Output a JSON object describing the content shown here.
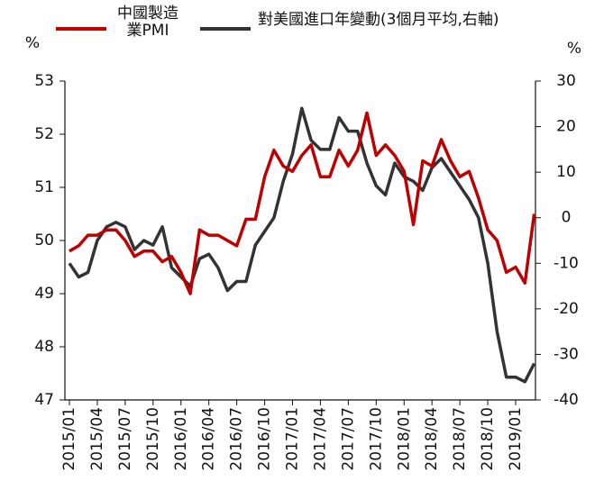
{
  "chart_data": {
    "type": "line",
    "categories": [
      "2015/01",
      null,
      null,
      "2015/04",
      null,
      null,
      "2015/07",
      null,
      null,
      "2015/10",
      null,
      null,
      "2016/01",
      null,
      null,
      "2016/04",
      null,
      null,
      "2016/07",
      null,
      null,
      "2016/10",
      null,
      null,
      "2017/01",
      null,
      null,
      "2017/04",
      null,
      null,
      "2017/07",
      null,
      null,
      "2017/10",
      null,
      null,
      "2018/01",
      null,
      null,
      "2018/04",
      null,
      null,
      "2018/07",
      null,
      null,
      "2018/10",
      null,
      null,
      "2019/01",
      null,
      null
    ],
    "series": [
      {
        "name": "中國製造業PMI",
        "color": "#c00000",
        "axis": "y",
        "values": [
          49.8,
          49.9,
          50.1,
          50.1,
          50.2,
          50.2,
          50.0,
          49.7,
          49.8,
          49.8,
          49.6,
          49.7,
          49.4,
          49.0,
          50.2,
          50.1,
          50.1,
          50.0,
          49.9,
          50.4,
          50.4,
          51.2,
          51.7,
          51.4,
          51.3,
          51.6,
          51.8,
          51.2,
          51.2,
          51.7,
          51.4,
          51.7,
          52.4,
          51.6,
          51.8,
          51.6,
          51.3,
          50.3,
          51.5,
          51.4,
          51.9,
          51.5,
          51.2,
          51.3,
          50.8,
          50.2,
          50.0,
          49.4,
          49.5,
          49.2,
          50.5
        ]
      },
      {
        "name": "對美國進口年變動(3個月平均,右軸)",
        "color": "#333333",
        "axis": "y2",
        "values": [
          -10,
          -13,
          -12,
          -5,
          -2,
          -1,
          -2,
          -7,
          -5,
          -6,
          -2,
          -11,
          -13,
          -15,
          -9,
          -8,
          -11,
          -16,
          -14,
          -14,
          -6,
          -3,
          0,
          8,
          14,
          24,
          17,
          15,
          15,
          22,
          19,
          19,
          12,
          7,
          5,
          12,
          9,
          8,
          6,
          11,
          13,
          10,
          7,
          4,
          0,
          -10,
          -25,
          -35,
          -35,
          -36,
          -32
        ]
      }
    ],
    "ylabel": "%",
    "y2label": "%",
    "ylim": [
      47,
      53
    ],
    "yticks": [
      47,
      48,
      49,
      50,
      51,
      52,
      53
    ],
    "y2lim": [
      -40,
      30
    ],
    "y2ticks": [
      -40,
      -30,
      -20,
      -10,
      0,
      10,
      20,
      30
    ]
  }
}
